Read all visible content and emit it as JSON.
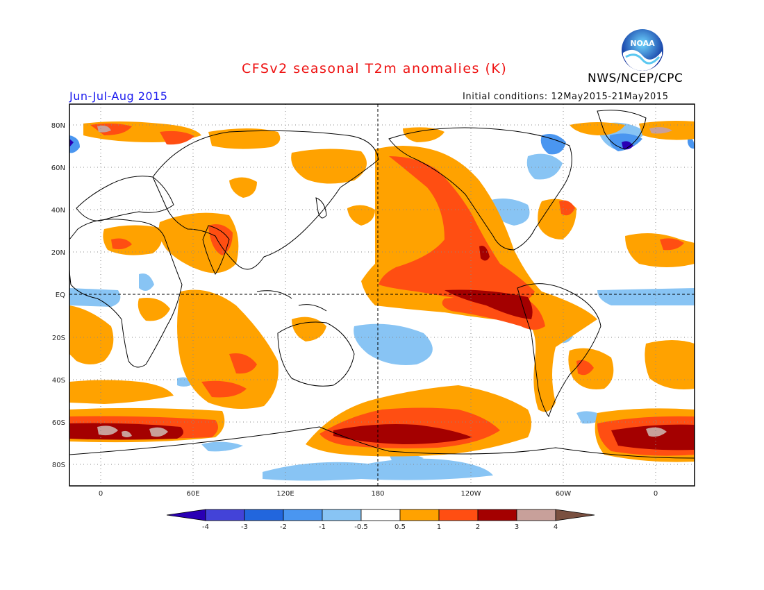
{
  "header": {
    "title": "CFSv2 seasonal T2m anomalies (K)",
    "organization": "NWS/NCEP/CPC",
    "season": "Jun-Jul-Aug 2015",
    "initial_conditions": "Initial conditions: 12May2015-21May2015",
    "logo_text": "NOAA"
  },
  "map": {
    "lat_labels": [
      "80N",
      "60N",
      "40N",
      "20N",
      "EQ",
      "20S",
      "40S",
      "60S",
      "80S"
    ],
    "lon_labels": [
      "0",
      "60E",
      "120E",
      "180",
      "120W",
      "60W",
      "0"
    ],
    "lon_range": [
      -20,
      385
    ],
    "lat_range": [
      -90,
      90
    ]
  },
  "legend": {
    "ticks": [
      "-4",
      "-3",
      "-2",
      "-1",
      "-0.5",
      "0.5",
      "1",
      "2",
      "3",
      "4"
    ],
    "colors": [
      "#2a00b4",
      "#4343d8",
      "#2266dd",
      "#4a96f0",
      "#88c4f4",
      "#ffffff",
      "#ffa200",
      "#ff4e12",
      "#a40000",
      "#c8a09a",
      "#7a5040"
    ]
  }
}
